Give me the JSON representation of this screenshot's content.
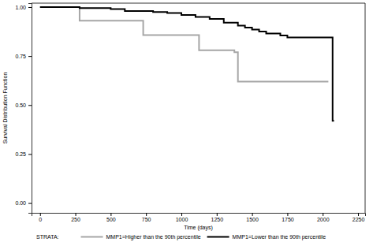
{
  "chart_data": {
    "type": "step",
    "x_label": "Time (days)",
    "y_label": "Survival Distribution Function",
    "xlim": [
      -60,
      2300
    ],
    "xticks": [
      0,
      250,
      500,
      750,
      1000,
      1250,
      1500,
      1750,
      2000,
      2250
    ],
    "ylim": [
      -0.05,
      1.02
    ],
    "yticks": [
      {
        "value": 0,
        "label": "0.00"
      },
      {
        "value": 0.25,
        "label": "0.25"
      },
      {
        "value": 0.5,
        "label": "0.50"
      },
      {
        "value": 0.75,
        "label": "0.75"
      },
      {
        "value": 1,
        "label": "1.00"
      }
    ],
    "grid": false,
    "legend": "bottom",
    "legend_title": "STRATA:",
    "series": [
      {
        "name": "MMP1=Higher than the 90th percentile",
        "color": "#a6a6a6",
        "line_style": "solid",
        "x": [
          0,
          280,
          730,
          1125,
          1375,
          1400,
          2040
        ],
        "values": [
          1.0,
          0.93,
          0.857,
          0.78,
          0.77,
          0.62,
          0.62
        ]
      },
      {
        "name": "MMP1=Lower than the 90th percentile",
        "color": "#000000",
        "line_style": "solid",
        "x": [
          0,
          280,
          500,
          600,
          800,
          900,
          1000,
          1100,
          1200,
          1300,
          1400,
          1450,
          1500,
          1550,
          1600,
          1700,
          1750,
          2070,
          2080
        ],
        "values": [
          1.0,
          0.995,
          0.99,
          0.98,
          0.975,
          0.97,
          0.96,
          0.95,
          0.94,
          0.92,
          0.905,
          0.895,
          0.885,
          0.875,
          0.865,
          0.855,
          0.845,
          0.42,
          0.42
        ]
      }
    ]
  }
}
